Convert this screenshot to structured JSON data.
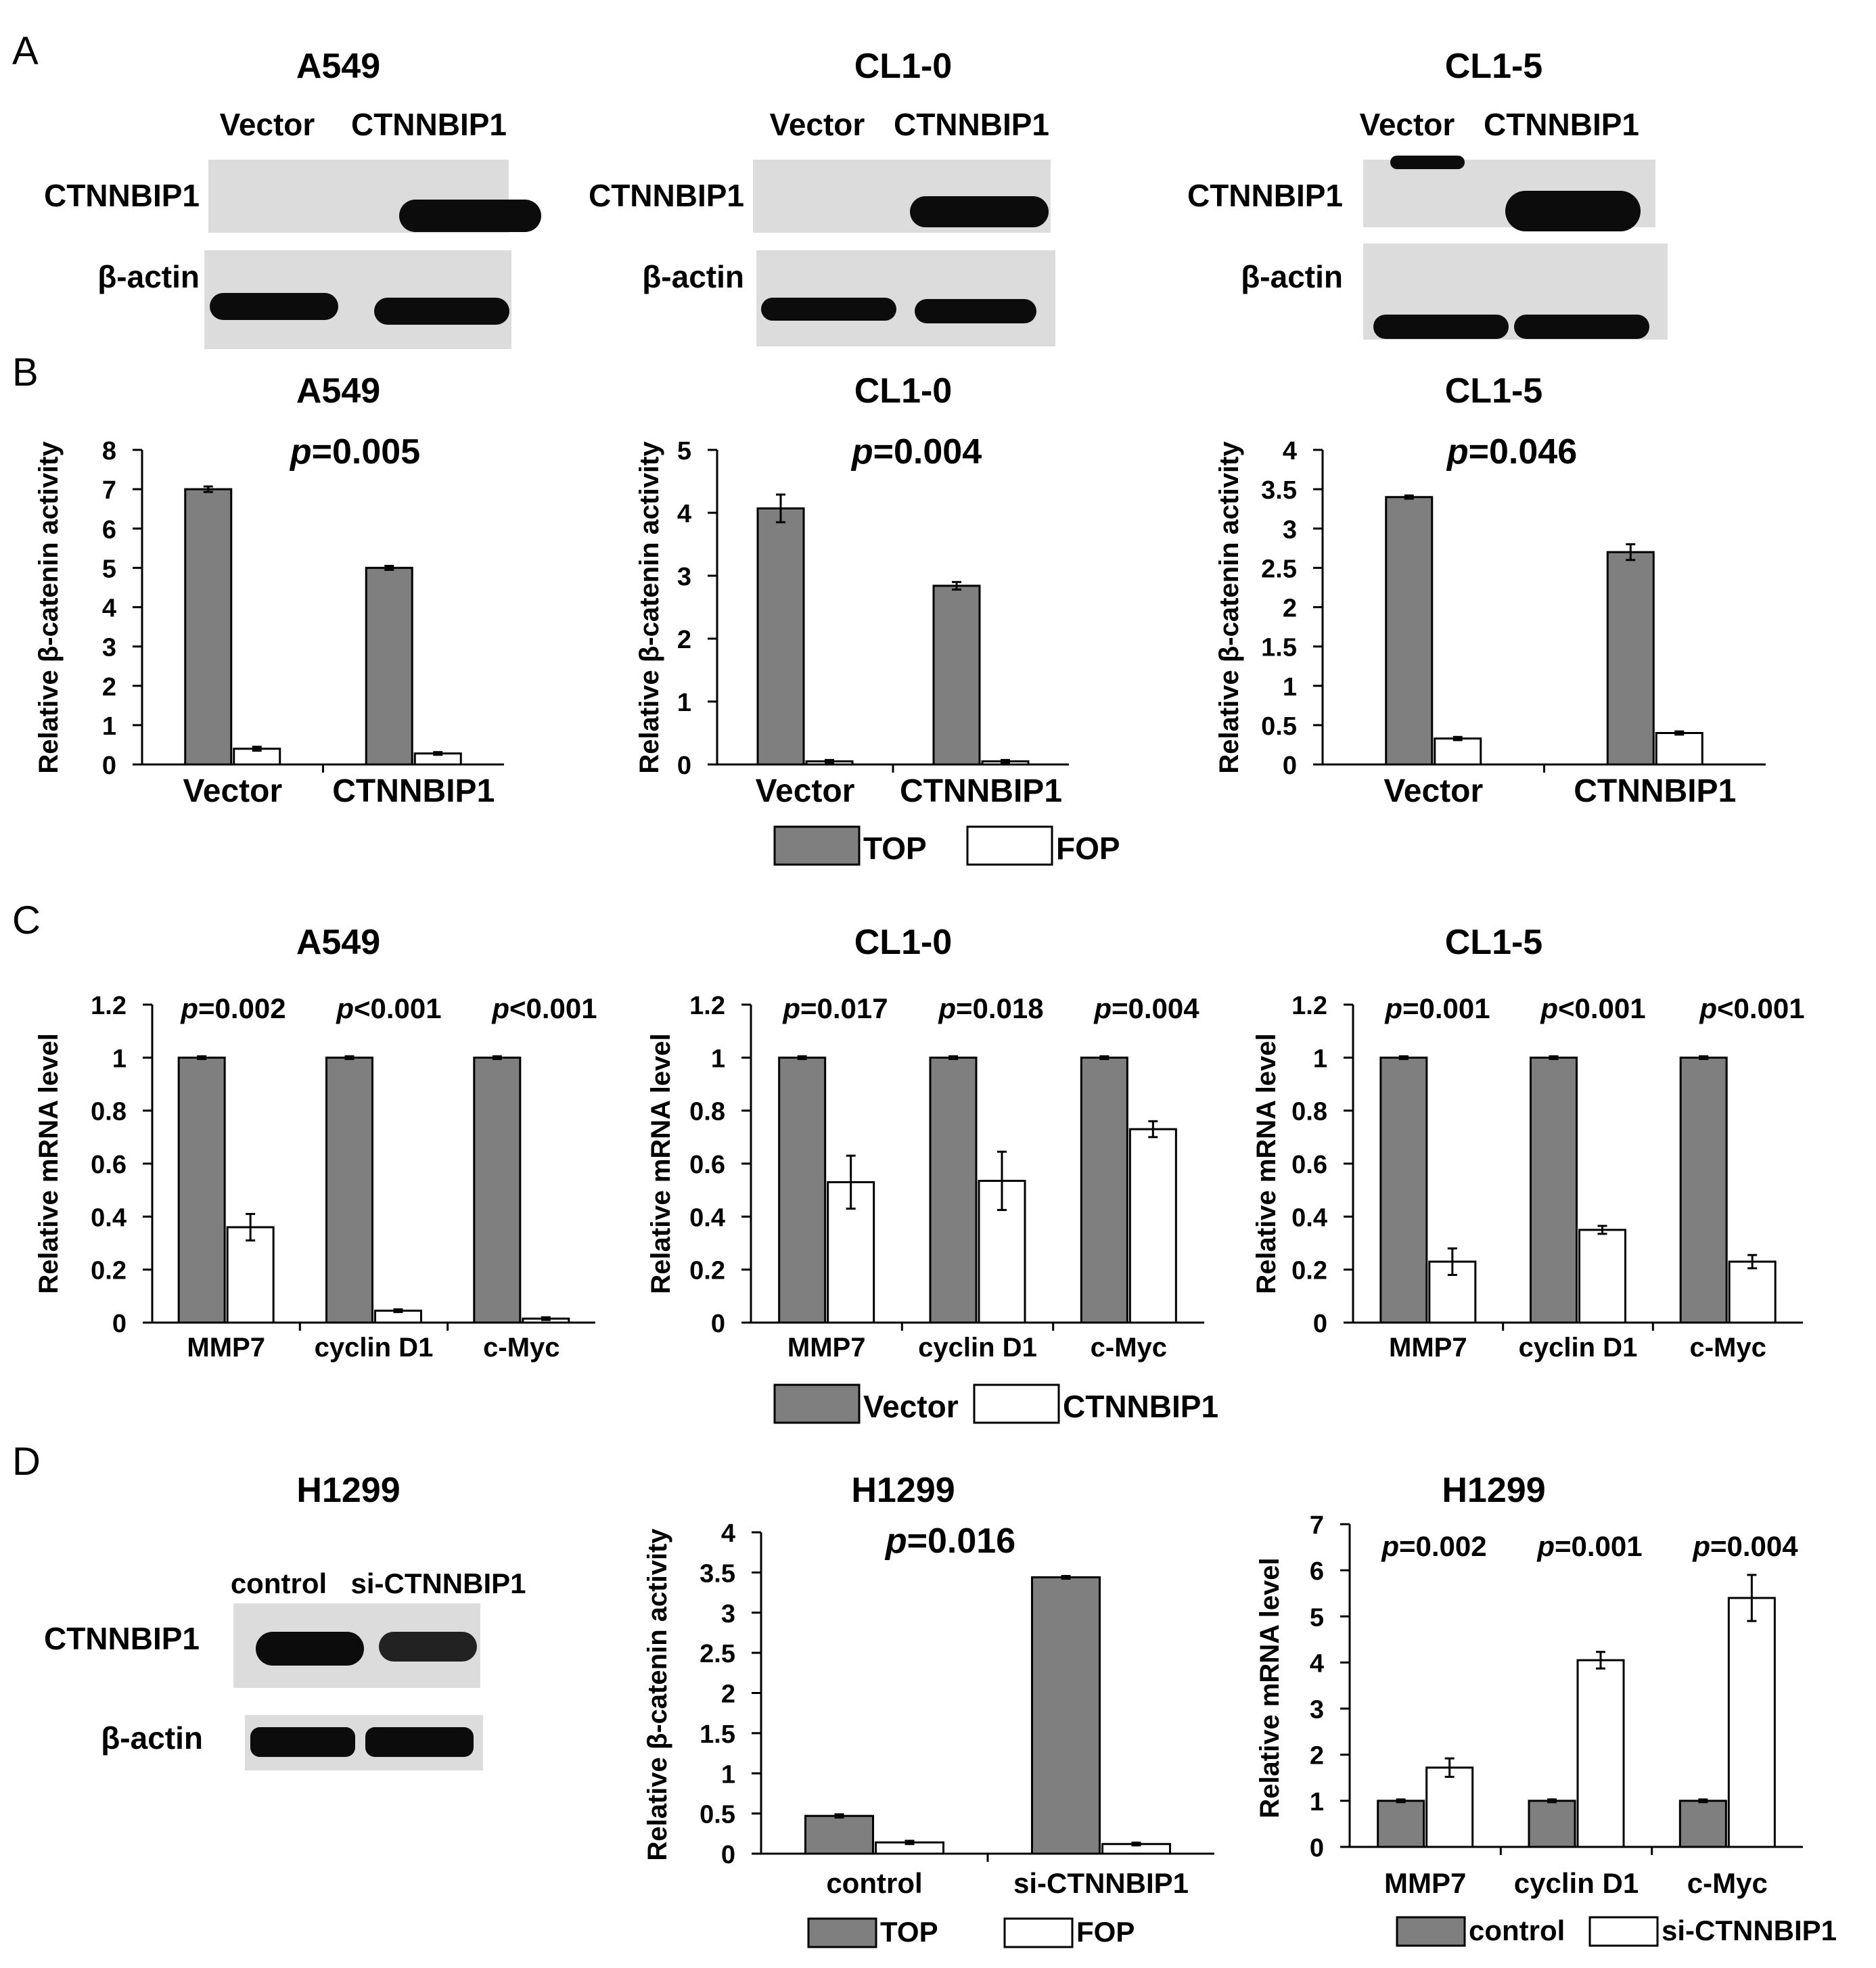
{
  "colors": {
    "top_bar": "#7f7f7f",
    "open_bar": "#ffffff",
    "stroke": "#000000",
    "blot_band": "#0c0c0c",
    "blot_bg": "#dcdcdc"
  },
  "panel_a": {
    "letter": "A",
    "row_labels": [
      "CTNNBIP1",
      "β-actin"
    ],
    "blots": [
      {
        "title": "A549",
        "lanes": [
          "Vector",
          "CTNNBIP1"
        ]
      },
      {
        "title": "CL1-0",
        "lanes": [
          "Vector",
          "CTNNBIP1"
        ]
      },
      {
        "title": "CL1-5",
        "lanes": [
          "Vector",
          "CTNNBIP1"
        ]
      }
    ]
  },
  "panel_d_blot": {
    "letter": "D",
    "title": "H1299",
    "lanes": [
      "control",
      "si-CTNNBIP1"
    ],
    "row_labels": [
      "CTNNBIP1",
      "β-actin"
    ]
  },
  "legends": {
    "b": [
      "TOP",
      "FOP"
    ],
    "c": [
      "Vector",
      "CTNNBIP1"
    ],
    "d_luc": [
      "TOP",
      "FOP"
    ],
    "d_mrna": [
      "control",
      "si-CTNNBIP1"
    ]
  },
  "chart_data": [
    {
      "panel": "B",
      "letter": "B",
      "type": "bar",
      "title": "A549",
      "ylabel": "Relative β-catenin activity",
      "ylim": [
        0,
        8
      ],
      "yticks": [
        "0",
        "1",
        "2",
        "3",
        "4",
        "5",
        "6",
        "7",
        "8"
      ],
      "categories": [
        "Vector",
        "CTNNBIP1"
      ],
      "series": [
        {
          "name": "TOP",
          "values": [
            7.0,
            5.0
          ],
          "errors": [
            0.07,
            0.05
          ]
        },
        {
          "name": "FOP",
          "values": [
            0.4,
            0.28
          ],
          "errors": [
            0.05,
            0.03
          ]
        }
      ],
      "annotations": [
        "p=0.005"
      ]
    },
    {
      "panel": "B",
      "type": "bar",
      "title": "CL1-0",
      "ylabel": "Relative β-catenin activity",
      "ylim": [
        0,
        5
      ],
      "yticks": [
        "0",
        "1",
        "2",
        "3",
        "4",
        "5"
      ],
      "categories": [
        "Vector",
        "CTNNBIP1"
      ],
      "series": [
        {
          "name": "TOP",
          "values": [
            4.07,
            2.84
          ],
          "errors": [
            0.22,
            0.06
          ]
        },
        {
          "name": "FOP",
          "values": [
            0.05,
            0.05
          ],
          "errors": [
            0.01,
            0.01
          ]
        }
      ],
      "annotations": [
        "p=0.004"
      ]
    },
    {
      "panel": "B",
      "type": "bar",
      "title": "CL1-5",
      "ylabel": "Relative β-catenin activity",
      "ylim": [
        0,
        4
      ],
      "yticks": [
        "0",
        "0.5",
        "1",
        "1.5",
        "2",
        "2.5",
        "3",
        "3.5",
        "4"
      ],
      "categories": [
        "Vector",
        "CTNNBIP1"
      ],
      "series": [
        {
          "name": "TOP",
          "values": [
            3.4,
            2.7
          ],
          "errors": [
            0.02,
            0.1
          ]
        },
        {
          "name": "FOP",
          "values": [
            0.33,
            0.4
          ],
          "errors": [
            0.02,
            0.02
          ]
        }
      ],
      "annotations": [
        "p=0.046"
      ]
    },
    {
      "panel": "C",
      "letter": "C",
      "type": "bar",
      "title": "A549",
      "ylabel": "Relative mRNA level",
      "ylim": [
        0,
        1.2
      ],
      "yticks": [
        "0",
        "0.2",
        "0.4",
        "0.6",
        "0.8",
        "1",
        "1.2"
      ],
      "categories": [
        "MMP7",
        "cyclin  D1",
        "c-Myc"
      ],
      "series": [
        {
          "name": "Vector",
          "values": [
            1,
            1,
            1
          ],
          "errors": [
            0.005,
            0.005,
            0.005
          ]
        },
        {
          "name": "CTNNBIP1",
          "values": [
            0.36,
            0.045,
            0.015
          ],
          "errors": [
            0.05,
            0.003,
            0.003
          ]
        }
      ],
      "annotations": [
        "p=0.002",
        "p<0.001",
        "p<0.001"
      ]
    },
    {
      "panel": "C",
      "type": "bar",
      "title": "CL1-0",
      "ylabel": "Relative mRNA level",
      "ylim": [
        0,
        1.2
      ],
      "yticks": [
        "0",
        "0.2",
        "0.4",
        "0.6",
        "0.8",
        "1",
        "1.2"
      ],
      "categories": [
        "MMP7",
        "cyclin  D1",
        "c-Myc"
      ],
      "series": [
        {
          "name": "Vector",
          "values": [
            1,
            1,
            1
          ],
          "errors": [
            0.005,
            0.005,
            0.005
          ]
        },
        {
          "name": "CTNNBIP1",
          "values": [
            0.53,
            0.535,
            0.73
          ],
          "errors": [
            0.1,
            0.11,
            0.03
          ]
        }
      ],
      "annotations": [
        "p=0.017",
        "p=0.018",
        "p=0.004"
      ]
    },
    {
      "panel": "C",
      "type": "bar",
      "title": "CL1-5",
      "ylabel": "Relative mRNA level",
      "ylim": [
        0,
        1.2
      ],
      "yticks": [
        "0",
        "0.2",
        "0.4",
        "0.6",
        "0.8",
        "1",
        "1.2"
      ],
      "categories": [
        "MMP7",
        "cyclin  D1",
        "c-Myc"
      ],
      "series": [
        {
          "name": "Vector",
          "values": [
            1,
            1,
            1
          ],
          "errors": [
            0.005,
            0.005,
            0.005
          ]
        },
        {
          "name": "CTNNBIP1",
          "values": [
            0.23,
            0.35,
            0.23
          ],
          "errors": [
            0.05,
            0.015,
            0.025
          ]
        }
      ],
      "annotations": [
        "p=0.001",
        "p<0.001",
        "p<0.001"
      ]
    },
    {
      "panel": "D",
      "type": "bar",
      "title": "H1299",
      "ylabel": "Relative β-catenin activity",
      "ylim": [
        0,
        4
      ],
      "yticks": [
        "0",
        "0.5",
        "1",
        "1.5",
        "2",
        "2.5",
        "3",
        "3.5",
        "4"
      ],
      "categories": [
        "control",
        "si-CTNNBIP1"
      ],
      "series": [
        {
          "name": "TOP",
          "values": [
            0.47,
            3.44
          ],
          "errors": [
            0.02,
            0.01
          ]
        },
        {
          "name": "FOP",
          "values": [
            0.14,
            0.12
          ],
          "errors": [
            0.02,
            0.01
          ]
        }
      ],
      "annotations": [
        "p=0.016"
      ]
    },
    {
      "panel": "D",
      "type": "bar",
      "title": "H1299",
      "ylabel": "Relative mRNA level",
      "ylim": [
        0,
        7
      ],
      "yticks": [
        "0",
        "1",
        "2",
        "3",
        "4",
        "5",
        "6",
        "7"
      ],
      "categories": [
        "MMP7",
        "cyclin  D1",
        "c-Myc"
      ],
      "series": [
        {
          "name": "control",
          "values": [
            1,
            1,
            1
          ],
          "errors": [
            0.02,
            0.02,
            0.02
          ]
        },
        {
          "name": "si-CTNNBIP1",
          "values": [
            1.72,
            4.05,
            5.4
          ],
          "errors": [
            0.2,
            0.18,
            0.5
          ]
        }
      ],
      "annotations": [
        "p=0.002",
        "p=0.001",
        "p=0.004"
      ]
    }
  ]
}
